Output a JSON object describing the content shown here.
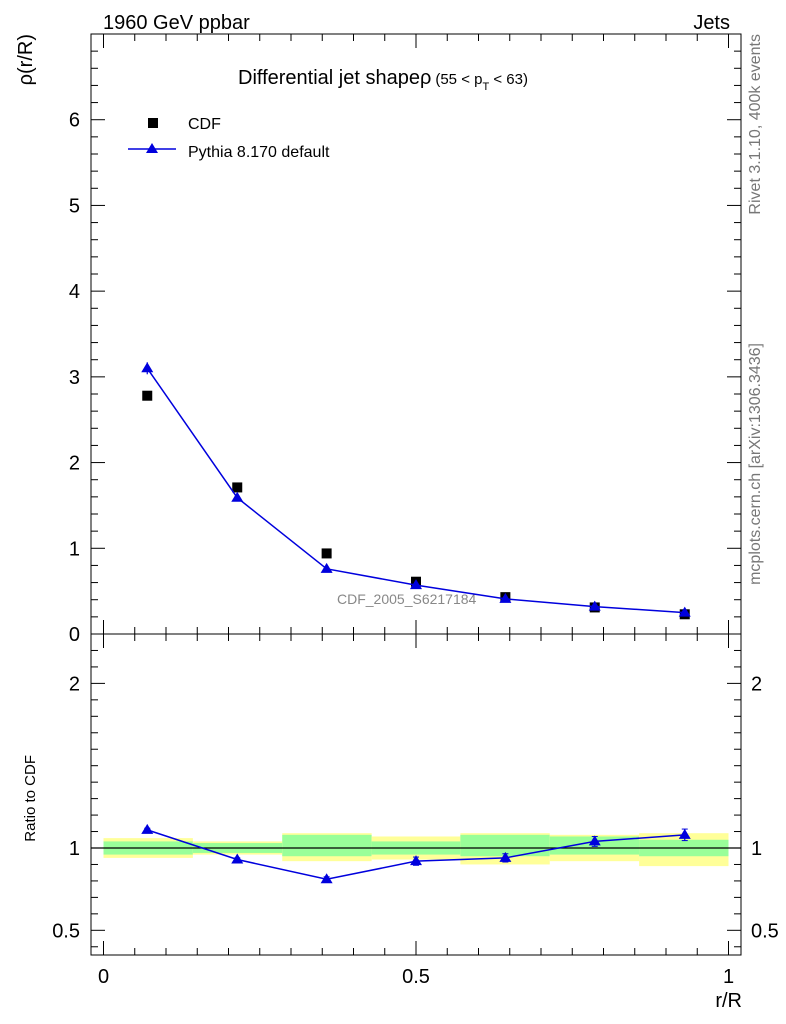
{
  "header": {
    "left": "1960 GeV ppbar",
    "right": "Jets"
  },
  "title": {
    "main": "Differential jet shapeρ",
    "range_prefix": "(55 < p",
    "range_sub": "T",
    "range_suffix": " < 63)"
  },
  "side_labels": {
    "rivet": "Rivet 3.1.10,  400k events",
    "mcplots": "mcplots.cern.ch [arXiv:1306.3436]"
  },
  "watermark": "CDF_2005_S6217184",
  "colors": {
    "data": "#000000",
    "mc": "#0000dd",
    "band_inner": "#99ff99",
    "band_outer": "#ffff99",
    "text_gray": "#777777"
  },
  "chart_data": [
    {
      "type": "scatter",
      "ylabel": "ρ(r/R)",
      "xlim": [
        -0.02,
        1.02
      ],
      "ylim": [
        0,
        7
      ],
      "y_ticks": [
        0,
        1,
        2,
        3,
        4,
        5,
        6
      ],
      "legend": {
        "position": "top-left",
        "entries": [
          "CDF",
          "Pythia 8.170 default"
        ]
      },
      "x": [
        0.07,
        0.214,
        0.357,
        0.5,
        0.643,
        0.786,
        0.93
      ],
      "series": [
        {
          "name": "CDF",
          "values": [
            2.78,
            1.71,
            0.94,
            0.61,
            0.43,
            0.31,
            0.23
          ],
          "errors": [
            0.02,
            0.02,
            0.02,
            0.01,
            0.01,
            0.01,
            0.01
          ]
        },
        {
          "name": "Pythia 8.170 default",
          "values": [
            3.1,
            1.59,
            0.76,
            0.57,
            0.41,
            0.32,
            0.25
          ],
          "errors": [
            0.07,
            0.03,
            0.02,
            0.02,
            0.01,
            0.01,
            0.01
          ]
        }
      ]
    },
    {
      "type": "line",
      "ylabel": "Ratio to CDF",
      "xlabel": "r/R",
      "xlim": [
        -0.02,
        1.02
      ],
      "ylim": [
        0.35,
        2.3
      ],
      "y_ticks": [
        0.5,
        1,
        2
      ],
      "x_ticks": [
        0,
        0.5,
        1
      ],
      "x_tick_labels": [
        "0",
        "0.5",
        "1"
      ],
      "bands": [
        {
          "x0": 0.0,
          "x1": 0.143,
          "inner": [
            0.96,
            1.04
          ],
          "outer": [
            0.94,
            1.06
          ]
        },
        {
          "x0": 0.143,
          "x1": 0.286,
          "inner": [
            0.97,
            1.03
          ],
          "outer": [
            0.96,
            1.04
          ]
        },
        {
          "x0": 0.286,
          "x1": 0.429,
          "inner": [
            0.95,
            1.08
          ],
          "outer": [
            0.92,
            1.09
          ]
        },
        {
          "x0": 0.429,
          "x1": 0.571,
          "inner": [
            0.96,
            1.04
          ],
          "outer": [
            0.93,
            1.07
          ]
        },
        {
          "x0": 0.571,
          "x1": 0.714,
          "inner": [
            0.95,
            1.08
          ],
          "outer": [
            0.9,
            1.09
          ]
        },
        {
          "x0": 0.714,
          "x1": 0.857,
          "inner": [
            0.96,
            1.07
          ],
          "outer": [
            0.92,
            1.08
          ]
        },
        {
          "x0": 0.857,
          "x1": 1.0,
          "inner": [
            0.95,
            1.05
          ],
          "outer": [
            0.89,
            1.09
          ]
        }
      ],
      "series": [
        {
          "name": "Pythia 8.170 default",
          "x": [
            0.07,
            0.214,
            0.357,
            0.5,
            0.643,
            0.786,
            0.93
          ],
          "values": [
            1.11,
            0.93,
            0.81,
            0.92,
            0.94,
            1.04,
            1.08
          ],
          "errors": [
            0.01,
            0.01,
            0.015,
            0.025,
            0.025,
            0.03,
            0.035
          ]
        }
      ]
    }
  ]
}
